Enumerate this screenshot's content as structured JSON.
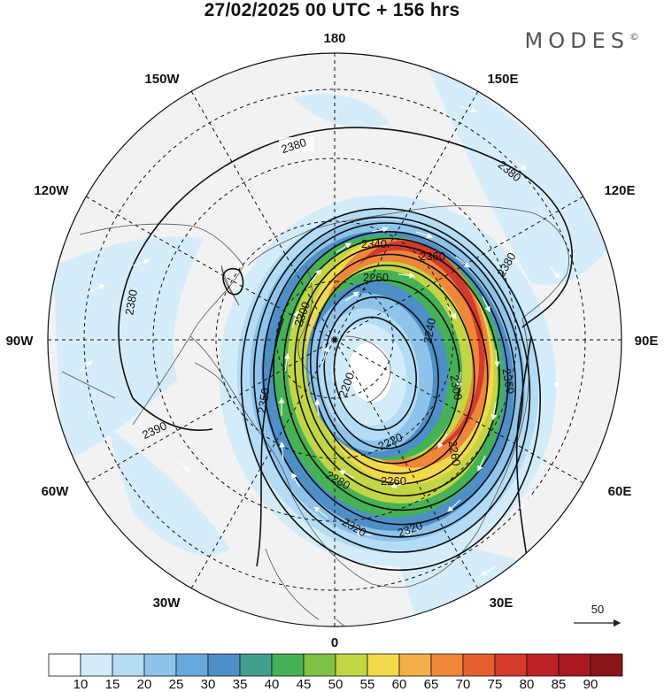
{
  "header": {
    "title": "27/02/2025  00 UTC  + 156 hrs",
    "brand": "MODES",
    "brand_mark": "©"
  },
  "map": {
    "projection": "north-polar-stereographic",
    "longitude_labels": [
      "180",
      "150E",
      "120E",
      "90E",
      "60E",
      "30E",
      "0",
      "30W",
      "60W",
      "90W",
      "120W",
      "150W"
    ],
    "contour_labels": [
      "2380",
      "2380",
      "2380",
      "2380",
      "2380",
      "2390",
      "2360",
      "2360",
      "2340",
      "2300",
      "2260",
      "2240",
      "2300",
      "2260",
      "2220",
      "2200",
      "2220",
      "2260",
      "2280",
      "2300",
      "2320",
      "2320",
      "2350"
    ],
    "vector_reference": {
      "label": "50"
    }
  },
  "colorbar": {
    "levels": [
      10,
      15,
      20,
      25,
      30,
      35,
      40,
      45,
      50,
      55,
      60,
      65,
      70,
      75,
      80,
      85,
      90
    ],
    "colors": [
      "#ffffff",
      "#d3ecfa",
      "#b4dcf4",
      "#8ec4ea",
      "#68a8dd",
      "#4e8fc8",
      "#3fa08c",
      "#44b255",
      "#7fc142",
      "#c2d644",
      "#f2d94a",
      "#f4b04a",
      "#ef8638",
      "#e4602e",
      "#d43a2b",
      "#c02127",
      "#a9181f",
      "#8a1419"
    ],
    "labels": [
      "10",
      "15",
      "20",
      "25",
      "30",
      "35",
      "40",
      "45",
      "50",
      "55",
      "60",
      "65",
      "70",
      "75",
      "80",
      "85",
      "90"
    ]
  }
}
